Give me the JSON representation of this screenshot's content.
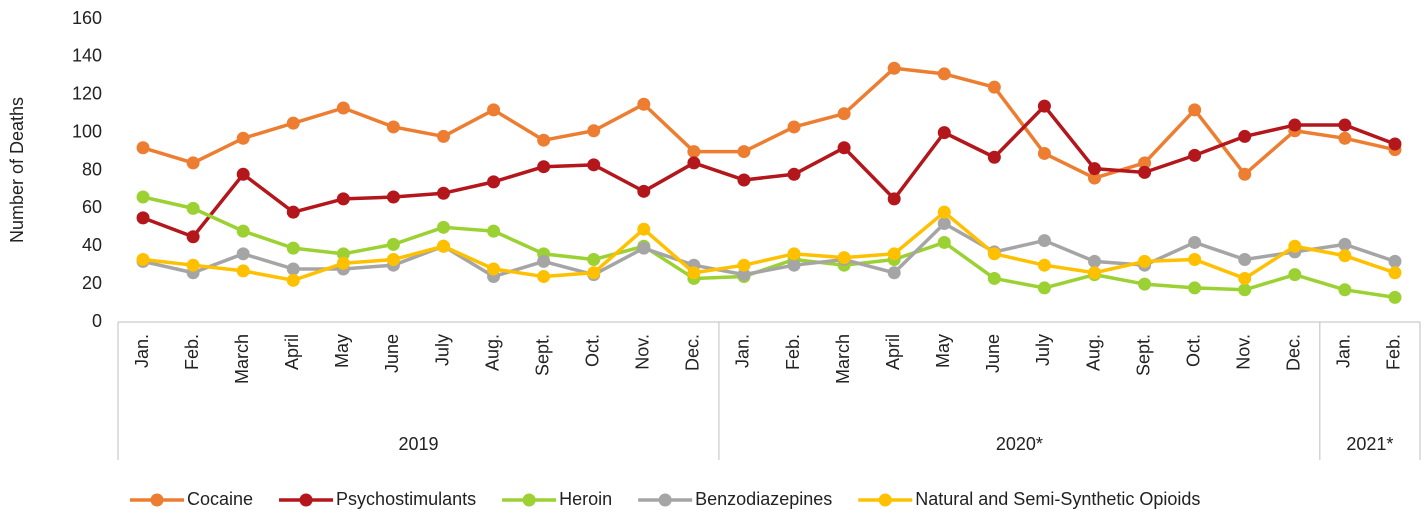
{
  "chart_data": {
    "type": "line",
    "y_label": "Number of Deaths",
    "groups": [
      {
        "label": "2019",
        "categories": [
          "Jan.",
          "Feb.",
          "March",
          "April",
          "May",
          "June",
          "July",
          "Aug.",
          "Sept.",
          "Oct.",
          "Nov.",
          "Dec."
        ]
      },
      {
        "label": "2020*",
        "categories": [
          "Jan.",
          "Feb.",
          "March",
          "April",
          "May",
          "June",
          "July",
          "Aug.",
          "Sept.",
          "Oct.",
          "Nov.",
          "Dec."
        ]
      },
      {
        "label": "2021*",
        "categories": [
          "Jan.",
          "Feb."
        ]
      }
    ],
    "series": [
      {
        "name": "Cocaine",
        "color": "#ed7d31",
        "values": [
          92,
          84,
          97,
          105,
          113,
          103,
          98,
          112,
          96,
          101,
          115,
          90,
          90,
          103,
          110,
          134,
          131,
          124,
          89,
          76,
          84,
          112,
          78,
          101,
          97,
          91
        ]
      },
      {
        "name": "Psychostimulants",
        "color": "#b3161b",
        "values": [
          55,
          45,
          78,
          58,
          65,
          66,
          68,
          74,
          82,
          83,
          69,
          84,
          75,
          78,
          92,
          65,
          100,
          87,
          114,
          81,
          79,
          88,
          98,
          104,
          104,
          94
        ]
      },
      {
        "name": "Heroin",
        "color": "#9bd132",
        "values": [
          66,
          60,
          48,
          39,
          36,
          41,
          50,
          48,
          36,
          33,
          40,
          23,
          24,
          33,
          30,
          33,
          42,
          23,
          18,
          25,
          20,
          18,
          17,
          25,
          17,
          13
        ]
      },
      {
        "name": "Benzodiazepines",
        "color": "#a5a5a5",
        "values": [
          32,
          26,
          36,
          28,
          28,
          30,
          40,
          24,
          32,
          25,
          39,
          30,
          25,
          30,
          33,
          26,
          52,
          37,
          43,
          32,
          30,
          42,
          33,
          37,
          41,
          32
        ]
      },
      {
        "name": "Natural and Semi-Synthetic Opioids",
        "color": "#ffc000",
        "values": [
          33,
          30,
          27,
          22,
          31,
          33,
          40,
          28,
          24,
          26,
          49,
          26,
          30,
          36,
          34,
          36,
          58,
          36,
          30,
          26,
          32,
          33,
          23,
          40,
          35,
          26
        ]
      }
    ],
    "ylim": [
      0,
      160
    ],
    "yticks": [
      0,
      20,
      40,
      60,
      80,
      100,
      120,
      140,
      160
    ],
    "grid": false,
    "legend": "bottom"
  }
}
